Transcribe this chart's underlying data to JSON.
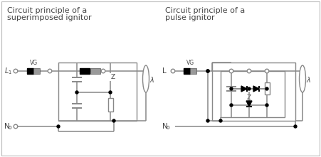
{
  "title1_line1": "Circuit principle of a",
  "title1_line2": "superimposed ignitor",
  "title2_line1": "Circuit principle of a",
  "title2_line2": "pulse ignitor",
  "line_color": "#888888",
  "dark_color": "#444444",
  "black": "#000000",
  "white": "#ffffff",
  "gray_block": "#999999"
}
